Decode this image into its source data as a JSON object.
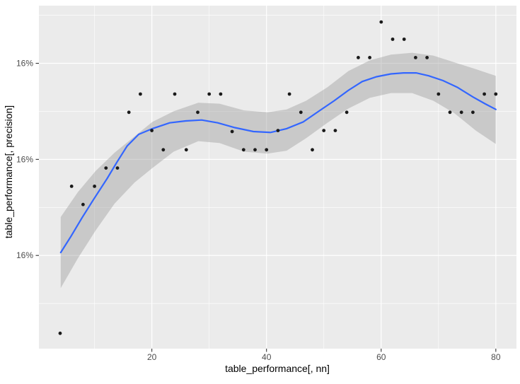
{
  "figure": {
    "background": "#FFFFFF",
    "panel_background": "#EBEBEB",
    "grid_color": "#FFFFFF",
    "smooth_line_color": "#3366FF",
    "ribbon_color": "#9B9B9B",
    "ribbon_opacity": 0.42,
    "point_color": "#1A1A1A",
    "tick_label_color": "#4D4D4D",
    "axis_title_color": "#000000",
    "tick_mark_color": "#333333"
  },
  "chart_data": {
    "type": "scatter",
    "title": "",
    "xlabel": "table_performance[, nn]",
    "ylabel": "table_performance[, precision]",
    "legend_position": "none",
    "grid": true,
    "x_axis": {
      "breaks": [
        20,
        40,
        60,
        80
      ],
      "labels": [
        "20",
        "40",
        "60",
        "80"
      ],
      "minor_breaks": [
        10,
        30,
        50,
        70
      ],
      "lim": [
        0.3,
        83.6
      ]
    },
    "y_axis": {
      "breaks": [
        15.9,
        16.0,
        16.1
      ],
      "labels": [
        "16%",
        "16%",
        "16%"
      ],
      "minor_breaks": [
        15.85,
        15.95,
        16.05,
        16.15
      ],
      "lim": [
        15.803,
        16.16
      ],
      "unit": "percent"
    },
    "points": [
      [
        4,
        15.819
      ],
      [
        6,
        15.972
      ],
      [
        8,
        15.953
      ],
      [
        10,
        15.972
      ],
      [
        12,
        15.991
      ],
      [
        14,
        15.991
      ],
      [
        16,
        16.049
      ],
      [
        18,
        16.068
      ],
      [
        20,
        16.03
      ],
      [
        22,
        16.01
      ],
      [
        24,
        16.068
      ],
      [
        26,
        16.01
      ],
      [
        28,
        16.049
      ],
      [
        30,
        16.068
      ],
      [
        32,
        16.068
      ],
      [
        34,
        16.029
      ],
      [
        36,
        16.01
      ],
      [
        38,
        16.01
      ],
      [
        40,
        16.01
      ],
      [
        42,
        16.03
      ],
      [
        44,
        16.068
      ],
      [
        46,
        16.049
      ],
      [
        48,
        16.01
      ],
      [
        50,
        16.03
      ],
      [
        52,
        16.03
      ],
      [
        54,
        16.049
      ],
      [
        56,
        16.106
      ],
      [
        58,
        16.106
      ],
      [
        60,
        16.143
      ],
      [
        62,
        16.125
      ],
      [
        64,
        16.125
      ],
      [
        66,
        16.106
      ],
      [
        68,
        16.106
      ],
      [
        70,
        16.068
      ],
      [
        72,
        16.049
      ],
      [
        74,
        16.049
      ],
      [
        76,
        16.049
      ],
      [
        78,
        16.068
      ],
      [
        80,
        16.068
      ]
    ],
    "smooth_line": [
      [
        4.1,
        15.903
      ],
      [
        5.9,
        15.92
      ],
      [
        7.8,
        15.939
      ],
      [
        9.8,
        15.958
      ],
      [
        12.2,
        15.98
      ],
      [
        13.9,
        15.997
      ],
      [
        15.7,
        16.014
      ],
      [
        17.7,
        16.026
      ],
      [
        20.1,
        16.032
      ],
      [
        23.1,
        16.038
      ],
      [
        25.9,
        16.04
      ],
      [
        28.7,
        16.041
      ],
      [
        31.5,
        16.038
      ],
      [
        34.5,
        16.033
      ],
      [
        37.7,
        16.029
      ],
      [
        40.7,
        16.028
      ],
      [
        43.5,
        16.032
      ],
      [
        46.4,
        16.039
      ],
      [
        49.1,
        16.05
      ],
      [
        51.8,
        16.061
      ],
      [
        54.3,
        16.072
      ],
      [
        56.7,
        16.081
      ],
      [
        59.2,
        16.086
      ],
      [
        61.7,
        16.089
      ],
      [
        63.9,
        16.09
      ],
      [
        66.1,
        16.09
      ],
      [
        68.3,
        16.087
      ],
      [
        70.8,
        16.082
      ],
      [
        73.3,
        16.075
      ],
      [
        76.0,
        16.065
      ],
      [
        78.1,
        16.058
      ],
      [
        80.0,
        16.052
      ]
    ],
    "ribbon": [
      [
        4.1,
        15.866,
        15.94
      ],
      [
        7.1,
        15.897,
        15.966
      ],
      [
        10.2,
        15.926,
        15.988
      ],
      [
        13.5,
        15.954,
        16.007
      ],
      [
        17.0,
        15.976,
        16.024
      ],
      [
        20.1,
        15.991,
        16.039
      ],
      [
        23.8,
        16.008,
        16.05
      ],
      [
        28.1,
        16.019,
        16.059
      ],
      [
        31.8,
        16.017,
        16.058
      ],
      [
        36.1,
        16.008,
        16.051
      ],
      [
        40.2,
        16.006,
        16.049
      ],
      [
        43.5,
        16.009,
        16.052
      ],
      [
        46.9,
        16.022,
        16.061
      ],
      [
        50.6,
        16.038,
        16.075
      ],
      [
        54.3,
        16.053,
        16.092
      ],
      [
        58.0,
        16.064,
        16.103
      ],
      [
        61.7,
        16.069,
        16.109
      ],
      [
        65.4,
        16.069,
        16.111
      ],
      [
        69.1,
        16.061,
        16.108
      ],
      [
        72.8,
        16.048,
        16.101
      ],
      [
        76.5,
        16.03,
        16.094
      ],
      [
        80.0,
        16.016,
        16.087
      ]
    ]
  }
}
